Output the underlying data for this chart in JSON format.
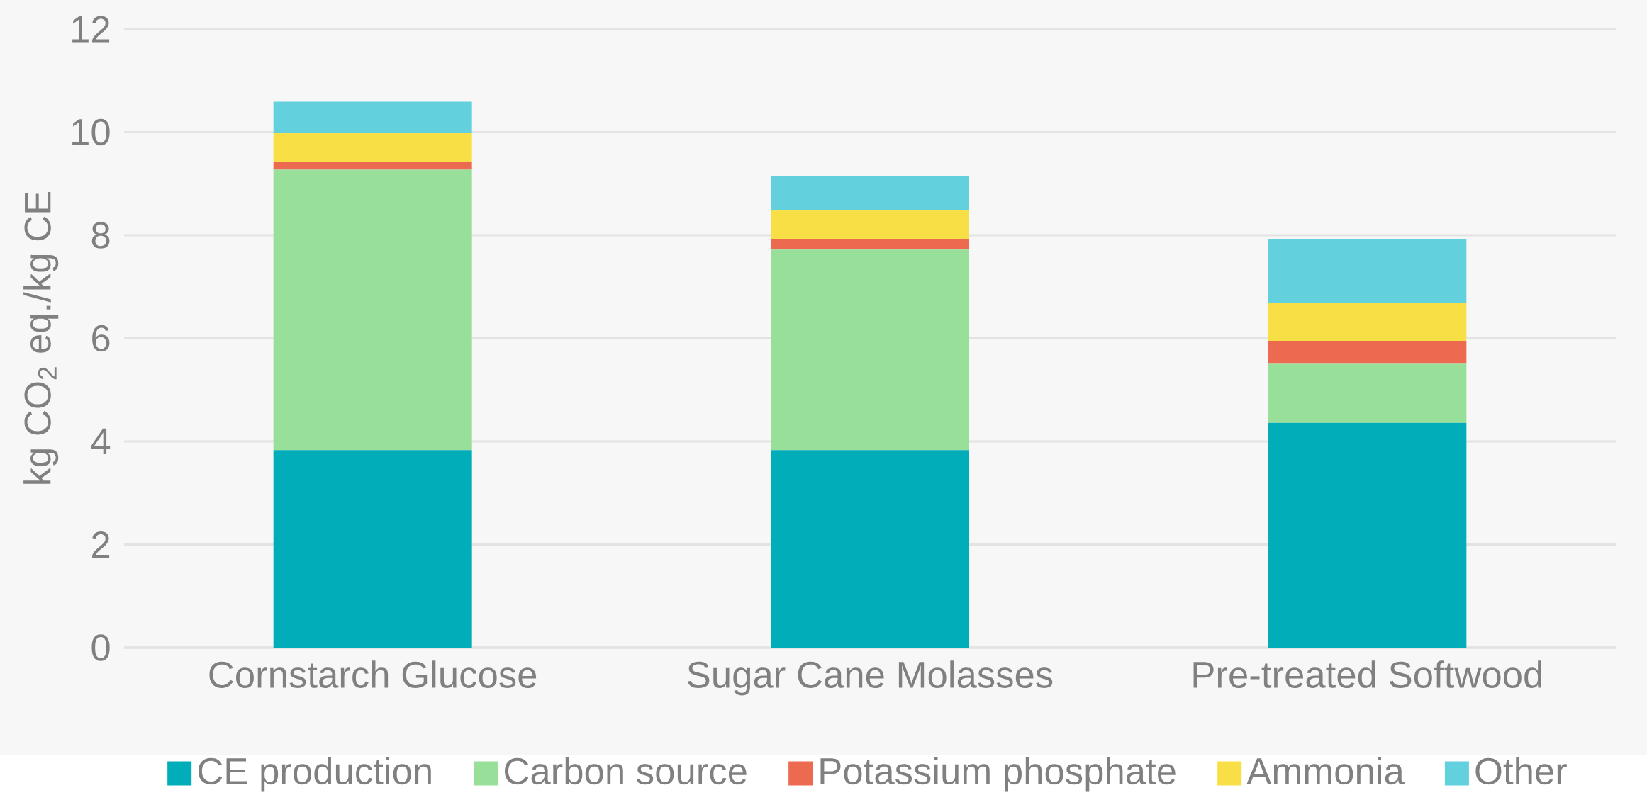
{
  "chart_data": {
    "type": "bar",
    "stacked": true,
    "ylabel": "kg CO$_{2}$ eq./kg CE",
    "categories": [
      "Cornstarch Glucose",
      "Sugar Cane Molasses",
      "Pre-treated Softwood"
    ],
    "series": [
      {
        "name": "CE production",
        "color": "#00adb9",
        "values": [
          3.83,
          3.83,
          4.36
        ]
      },
      {
        "name": "Carbon source",
        "color": "#98df9a",
        "values": [
          5.44,
          3.89,
          1.16
        ]
      },
      {
        "name": "Potassium phosphate",
        "color": "#ec6b50",
        "values": [
          0.16,
          0.21,
          0.43
        ]
      },
      {
        "name": "Ammonia",
        "color": "#f9df46",
        "values": [
          0.55,
          0.55,
          0.73
        ]
      },
      {
        "name": "Other",
        "color": "#63d0de",
        "values": [
          0.61,
          0.67,
          1.25
        ]
      }
    ],
    "ylim": [
      0,
      12
    ],
    "yticks": [
      0,
      2,
      4,
      6,
      8,
      10,
      12
    ],
    "grid": "y",
    "legend": "bottom"
  }
}
